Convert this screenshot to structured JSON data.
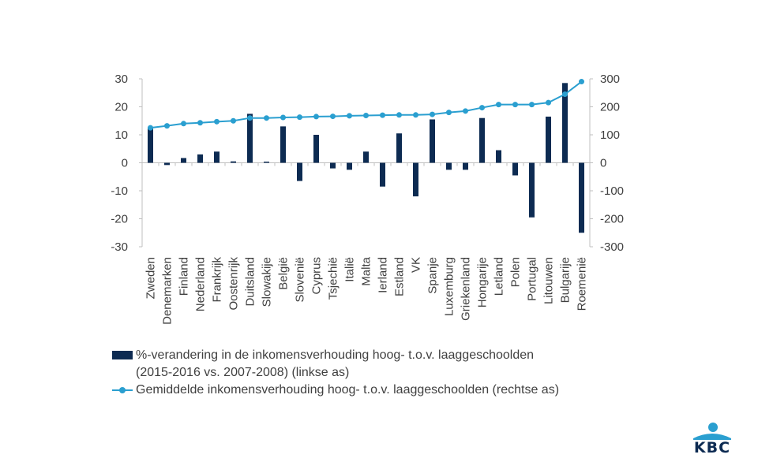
{
  "chart_data": {
    "type": "bar",
    "categories": [
      "Zweden",
      "Denemarken",
      "Finland",
      "Nederland",
      "Frankrijk",
      "Oostenrijk",
      "Duitsland",
      "Slowakije",
      "België",
      "Slovenië",
      "Cyprus",
      "Tsjechië",
      "Italië",
      "Malta",
      "Ierland",
      "Estland",
      "VK",
      "Spanje",
      "Luxemburg",
      "Griekenland",
      "Hongarije",
      "Letland",
      "Polen",
      "Portugal",
      "Litouwen",
      "Bulgarije",
      "Roemenië"
    ],
    "series": [
      {
        "name": "%-verandering in de inkomensverhouding hoog- t.o.v. laaggeschoolden (2015-2016 vs. 2007-2008) (linkse as)",
        "type": "bar",
        "axis": "left",
        "color": "#0d2b52",
        "values": [
          12.5,
          -0.8,
          1.7,
          3.0,
          4.0,
          0.5,
          17.5,
          0.4,
          13.0,
          -6.5,
          10.0,
          -2.0,
          -2.5,
          4.0,
          -8.5,
          10.5,
          -12.0,
          15.5,
          -2.5,
          -2.5,
          16.0,
          4.5,
          -4.5,
          -19.5,
          16.5,
          28.5,
          -25.0
        ]
      },
      {
        "name": "Gemiddelde inkomensverhouding hoog- t.o.v. laaggeschoolden (rechtse as)",
        "type": "line",
        "axis": "right",
        "color": "#2a9fd0",
        "values": [
          125,
          132,
          140,
          143,
          147,
          150,
          160,
          160,
          162,
          163,
          165,
          166,
          168,
          169,
          170,
          171,
          171,
          173,
          180,
          185,
          197,
          208,
          208,
          208,
          215,
          245,
          290
        ]
      }
    ],
    "y_left": {
      "min": -30,
      "max": 30,
      "ticks": [
        "30",
        "20",
        "10",
        "0",
        "-10",
        "-20",
        "-30"
      ]
    },
    "y_right": {
      "min": -300,
      "max": 300,
      "ticks": [
        "300",
        "200",
        "100",
        "0",
        "-100",
        "-200",
        "-300"
      ]
    },
    "legend_position": "bottom-left",
    "grid": false
  },
  "legend": {
    "bar_label_line1": "%-verandering in de inkomensverhouding hoog- t.o.v. laaggeschoolden",
    "bar_label_line2": "(2015-2016 vs. 2007-2008) (linkse as)",
    "line_label": "Gemiddelde inkomensverhouding hoog- t.o.v. laaggeschoolden (rechtse as)"
  },
  "logo": {
    "text": "KBC",
    "color": "#0d2b52",
    "accent": "#2a9fd0"
  }
}
